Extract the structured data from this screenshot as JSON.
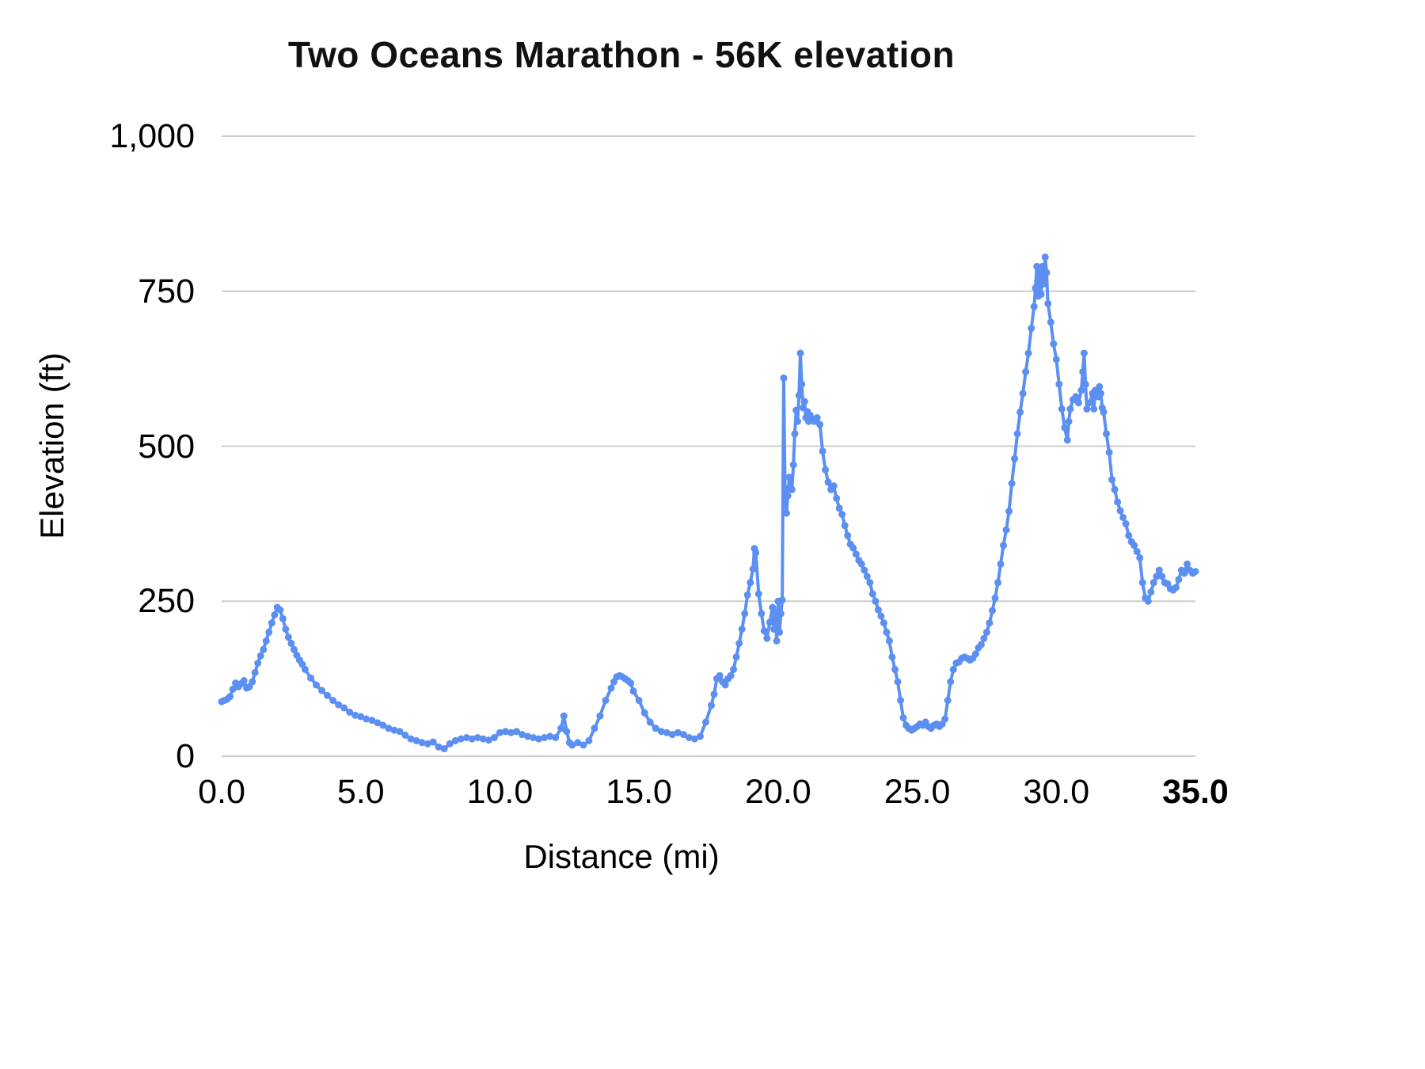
{
  "chart_data": {
    "type": "line",
    "title": "Two Oceans Marathon - 56K elevation",
    "xlabel": "Distance (mi)",
    "ylabel": "Elevation (ft)",
    "xlim": [
      0,
      35
    ],
    "ylim": [
      0,
      1000
    ],
    "x_ticks": [
      "0.0",
      "5.0",
      "10.0",
      "15.0",
      "20.0",
      "25.0",
      "30.0",
      "35.0"
    ],
    "x_tick_values": [
      0,
      5,
      10,
      15,
      20,
      25,
      30,
      35
    ],
    "y_ticks": [
      "0",
      "250",
      "500",
      "750",
      "1,000"
    ],
    "y_tick_values": [
      0,
      250,
      500,
      750,
      1000
    ],
    "grid": "horizontal",
    "legend": "none",
    "line_color": "#5b8ff2",
    "grid_color": "#cccccc",
    "marker": "circle",
    "series_name": "elevation",
    "points": [
      [
        0,
        88
      ],
      [
        0.1,
        90
      ],
      [
        0.2,
        92
      ],
      [
        0.3,
        96
      ],
      [
        0.4,
        108
      ],
      [
        0.5,
        118
      ],
      [
        0.6,
        112
      ],
      [
        0.7,
        117
      ],
      [
        0.8,
        122
      ],
      [
        0.9,
        110
      ],
      [
        1,
        112
      ],
      [
        1.1,
        120
      ],
      [
        1.2,
        135
      ],
      [
        1.3,
        150
      ],
      [
        1.4,
        162
      ],
      [
        1.5,
        172
      ],
      [
        1.6,
        186
      ],
      [
        1.7,
        200
      ],
      [
        1.8,
        215
      ],
      [
        1.9,
        228
      ],
      [
        2,
        240
      ],
      [
        2.1,
        236
      ],
      [
        2.2,
        222
      ],
      [
        2.3,
        205
      ],
      [
        2.4,
        192
      ],
      [
        2.5,
        182
      ],
      [
        2.6,
        172
      ],
      [
        2.7,
        163
      ],
      [
        2.8,
        155
      ],
      [
        2.9,
        148
      ],
      [
        3,
        140
      ],
      [
        3.2,
        126
      ],
      [
        3.4,
        115
      ],
      [
        3.6,
        106
      ],
      [
        3.8,
        98
      ],
      [
        4,
        90
      ],
      [
        4.2,
        83
      ],
      [
        4.4,
        78
      ],
      [
        4.6,
        71
      ],
      [
        4.8,
        66
      ],
      [
        5,
        64
      ],
      [
        5.2,
        60
      ],
      [
        5.4,
        58
      ],
      [
        5.6,
        54
      ],
      [
        5.8,
        50
      ],
      [
        6,
        45
      ],
      [
        6.2,
        42
      ],
      [
        6.4,
        40
      ],
      [
        6.6,
        34
      ],
      [
        6.8,
        28
      ],
      [
        7,
        25
      ],
      [
        7.2,
        22
      ],
      [
        7.4,
        20
      ],
      [
        7.6,
        23
      ],
      [
        7.8,
        15
      ],
      [
        8,
        12
      ],
      [
        8.2,
        20
      ],
      [
        8.4,
        25
      ],
      [
        8.6,
        28
      ],
      [
        8.8,
        30
      ],
      [
        9,
        28
      ],
      [
        9.2,
        30
      ],
      [
        9.4,
        28
      ],
      [
        9.6,
        26
      ],
      [
        9.8,
        30
      ],
      [
        10,
        38
      ],
      [
        10.2,
        40
      ],
      [
        10.4,
        38
      ],
      [
        10.6,
        40
      ],
      [
        10.8,
        35
      ],
      [
        11,
        32
      ],
      [
        11.2,
        30
      ],
      [
        11.4,
        28
      ],
      [
        11.6,
        30
      ],
      [
        11.8,
        32
      ],
      [
        12,
        30
      ],
      [
        12.2,
        45
      ],
      [
        12.3,
        65
      ],
      [
        12.4,
        40
      ],
      [
        12.5,
        22
      ],
      [
        12.6,
        18
      ],
      [
        12.8,
        22
      ],
      [
        13,
        18
      ],
      [
        13.2,
        25
      ],
      [
        13.4,
        45
      ],
      [
        13.6,
        65
      ],
      [
        13.8,
        90
      ],
      [
        14,
        110
      ],
      [
        14.1,
        120
      ],
      [
        14.2,
        128
      ],
      [
        14.3,
        130
      ],
      [
        14.4,
        128
      ],
      [
        14.5,
        125
      ],
      [
        14.6,
        122
      ],
      [
        14.7,
        118
      ],
      [
        14.8,
        105
      ],
      [
        15,
        90
      ],
      [
        15.2,
        70
      ],
      [
        15.4,
        55
      ],
      [
        15.6,
        45
      ],
      [
        15.8,
        40
      ],
      [
        16,
        38
      ],
      [
        16.2,
        35
      ],
      [
        16.4,
        38
      ],
      [
        16.6,
        35
      ],
      [
        16.8,
        30
      ],
      [
        17,
        28
      ],
      [
        17.2,
        32
      ],
      [
        17.4,
        55
      ],
      [
        17.6,
        82
      ],
      [
        17.7,
        100
      ],
      [
        17.8,
        125
      ],
      [
        17.9,
        130
      ],
      [
        18,
        120
      ],
      [
        18.1,
        115
      ],
      [
        18.2,
        125
      ],
      [
        18.3,
        130
      ],
      [
        18.4,
        140
      ],
      [
        18.5,
        160
      ],
      [
        18.6,
        182
      ],
      [
        18.7,
        205
      ],
      [
        18.8,
        230
      ],
      [
        18.9,
        260
      ],
      [
        19,
        280
      ],
      [
        19.1,
        302
      ],
      [
        19.15,
        335
      ],
      [
        19.2,
        328
      ],
      [
        19.3,
        262
      ],
      [
        19.4,
        230
      ],
      [
        19.5,
        202
      ],
      [
        19.6,
        190
      ],
      [
        19.7,
        216
      ],
      [
        19.8,
        240
      ],
      [
        19.85,
        205
      ],
      [
        19.9,
        232
      ],
      [
        19.95,
        186
      ],
      [
        20,
        250
      ],
      [
        20.05,
        200
      ],
      [
        20.1,
        230
      ],
      [
        20.15,
        252
      ],
      [
        20.2,
        610
      ],
      [
        20.25,
        432
      ],
      [
        20.3,
        392
      ],
      [
        20.35,
        420
      ],
      [
        20.4,
        450
      ],
      [
        20.5,
        430
      ],
      [
        20.55,
        470
      ],
      [
        20.6,
        520
      ],
      [
        20.65,
        558
      ],
      [
        20.7,
        540
      ],
      [
        20.75,
        582
      ],
      [
        20.8,
        650
      ],
      [
        20.85,
        600
      ],
      [
        20.9,
        562
      ],
      [
        20.95,
        572
      ],
      [
        21,
        546
      ],
      [
        21.05,
        556
      ],
      [
        21.1,
        540
      ],
      [
        21.15,
        550
      ],
      [
        21.2,
        545
      ],
      [
        21.3,
        540
      ],
      [
        21.4,
        546
      ],
      [
        21.5,
        535
      ],
      [
        21.6,
        492
      ],
      [
        21.7,
        462
      ],
      [
        21.8,
        442
      ],
      [
        21.9,
        430
      ],
      [
        22,
        436
      ],
      [
        22.1,
        416
      ],
      [
        22.2,
        400
      ],
      [
        22.3,
        390
      ],
      [
        22.4,
        372
      ],
      [
        22.5,
        356
      ],
      [
        22.6,
        342
      ],
      [
        22.7,
        336
      ],
      [
        22.8,
        326
      ],
      [
        22.9,
        316
      ],
      [
        23,
        310
      ],
      [
        23.1,
        300
      ],
      [
        23.2,
        290
      ],
      [
        23.3,
        280
      ],
      [
        23.4,
        262
      ],
      [
        23.5,
        250
      ],
      [
        23.6,
        236
      ],
      [
        23.7,
        226
      ],
      [
        23.8,
        215
      ],
      [
        23.9,
        200
      ],
      [
        24,
        186
      ],
      [
        24.1,
        160
      ],
      [
        24.2,
        140
      ],
      [
        24.3,
        120
      ],
      [
        24.4,
        90
      ],
      [
        24.5,
        62
      ],
      [
        24.6,
        50
      ],
      [
        24.7,
        45
      ],
      [
        24.8,
        42
      ],
      [
        24.9,
        45
      ],
      [
        25,
        48
      ],
      [
        25.1,
        52
      ],
      [
        25.2,
        50
      ],
      [
        25.3,
        55
      ],
      [
        25.4,
        48
      ],
      [
        25.5,
        45
      ],
      [
        25.6,
        50
      ],
      [
        25.7,
        52
      ],
      [
        25.8,
        48
      ],
      [
        25.9,
        52
      ],
      [
        26,
        60
      ],
      [
        26.1,
        90
      ],
      [
        26.2,
        120
      ],
      [
        26.3,
        140
      ],
      [
        26.4,
        150
      ],
      [
        26.5,
        152
      ],
      [
        26.6,
        158
      ],
      [
        26.7,
        160
      ],
      [
        26.8,
        158
      ],
      [
        26.9,
        155
      ],
      [
        27,
        158
      ],
      [
        27.1,
        165
      ],
      [
        27.2,
        175
      ],
      [
        27.3,
        180
      ],
      [
        27.4,
        190
      ],
      [
        27.5,
        200
      ],
      [
        27.6,
        215
      ],
      [
        27.7,
        235
      ],
      [
        27.8,
        255
      ],
      [
        27.9,
        280
      ],
      [
        28,
        310
      ],
      [
        28.1,
        340
      ],
      [
        28.2,
        365
      ],
      [
        28.3,
        395
      ],
      [
        28.4,
        440
      ],
      [
        28.5,
        480
      ],
      [
        28.6,
        520
      ],
      [
        28.7,
        555
      ],
      [
        28.8,
        585
      ],
      [
        28.9,
        620
      ],
      [
        29,
        650
      ],
      [
        29.1,
        690
      ],
      [
        29.2,
        725
      ],
      [
        29.25,
        755
      ],
      [
        29.3,
        790
      ],
      [
        29.35,
        742
      ],
      [
        29.4,
        780
      ],
      [
        29.45,
        745
      ],
      [
        29.5,
        790
      ],
      [
        29.55,
        762
      ],
      [
        29.6,
        805
      ],
      [
        29.65,
        780
      ],
      [
        29.7,
        730
      ],
      [
        29.8,
        700
      ],
      [
        29.9,
        665
      ],
      [
        30,
        640
      ],
      [
        30.1,
        600
      ],
      [
        30.2,
        560
      ],
      [
        30.3,
        530
      ],
      [
        30.4,
        510
      ],
      [
        30.45,
        540
      ],
      [
        30.5,
        560
      ],
      [
        30.6,
        575
      ],
      [
        30.7,
        580
      ],
      [
        30.8,
        570
      ],
      [
        30.9,
        590
      ],
      [
        30.95,
        620
      ],
      [
        31,
        650
      ],
      [
        31.05,
        600
      ],
      [
        31.1,
        560
      ],
      [
        31.2,
        570
      ],
      [
        31.3,
        585
      ],
      [
        31.35,
        560
      ],
      [
        31.4,
        590
      ],
      [
        31.5,
        580
      ],
      [
        31.55,
        596
      ],
      [
        31.6,
        585
      ],
      [
        31.65,
        562
      ],
      [
        31.7,
        555
      ],
      [
        31.8,
        520
      ],
      [
        31.9,
        490
      ],
      [
        32,
        446
      ],
      [
        32.1,
        430
      ],
      [
        32.2,
        410
      ],
      [
        32.3,
        396
      ],
      [
        32.4,
        385
      ],
      [
        32.5,
        375
      ],
      [
        32.6,
        356
      ],
      [
        32.7,
        346
      ],
      [
        32.8,
        340
      ],
      [
        32.9,
        330
      ],
      [
        33,
        320
      ],
      [
        33.1,
        280
      ],
      [
        33.2,
        255
      ],
      [
        33.3,
        250
      ],
      [
        33.4,
        265
      ],
      [
        33.5,
        280
      ],
      [
        33.6,
        290
      ],
      [
        33.7,
        300
      ],
      [
        33.8,
        290
      ],
      [
        33.9,
        280
      ],
      [
        34,
        278
      ],
      [
        34.1,
        270
      ],
      [
        34.2,
        268
      ],
      [
        34.3,
        272
      ],
      [
        34.4,
        285
      ],
      [
        34.5,
        300
      ],
      [
        34.6,
        295
      ],
      [
        34.7,
        310
      ],
      [
        34.8,
        300
      ],
      [
        34.9,
        295
      ],
      [
        35,
        298
      ]
    ]
  }
}
